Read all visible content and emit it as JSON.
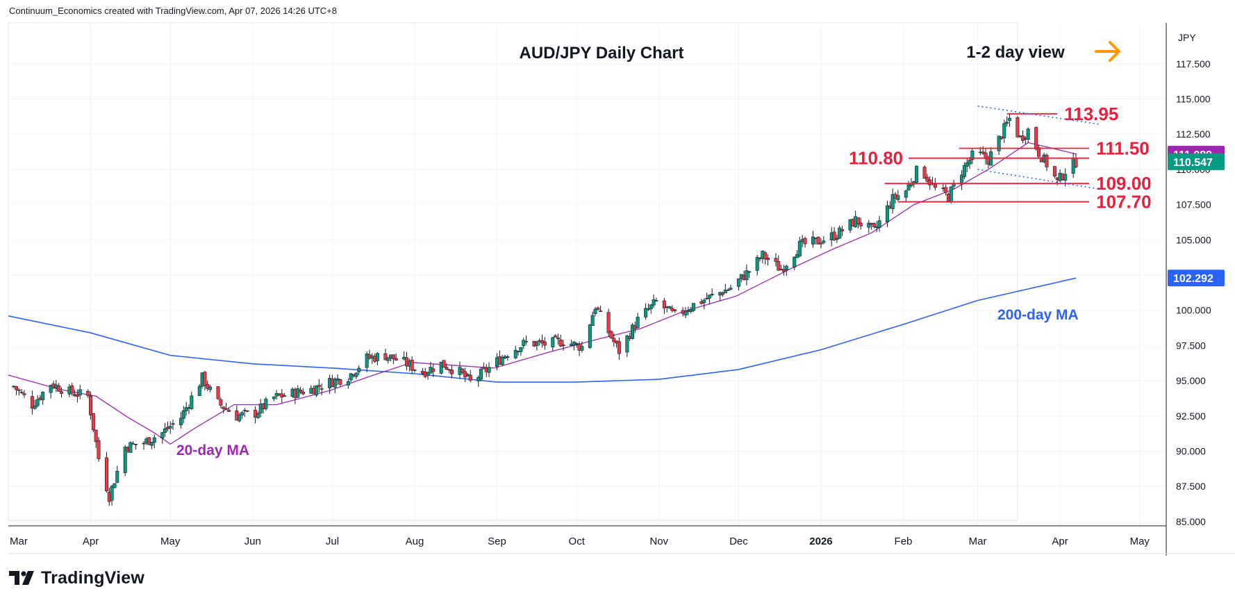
{
  "header": {
    "text": "Continuum_Economics created with TradingView.com, Apr 07, 2026 14:26 UTC+8"
  },
  "brand": {
    "name": "TradingView"
  },
  "chart_data": {
    "type": "candlestick",
    "title": "AUD/JPY Daily Chart",
    "view_label": "1-2 day view",
    "view_arrow": "arrow-right-icon",
    "currency_label": "JPY",
    "ylim": [
      84.7,
      120.4
    ],
    "y_ticks": [
      "117.500",
      "115.000",
      "112.500",
      "110.000",
      "107.500",
      "105.000",
      "102.500",
      "100.000",
      "97.500",
      "95.000",
      "92.500",
      "90.000",
      "87.500",
      "85.000"
    ],
    "x_ticks": [
      "Mar",
      "Apr",
      "May",
      "Jun",
      "Jul",
      "Aug",
      "Sep",
      "Oct",
      "Nov",
      "Dec",
      "2026",
      "Feb",
      "Mar",
      "Apr",
      "May"
    ],
    "x_tick_positions": [
      "2025-03-01",
      "2025-04-01",
      "2025-05-01",
      "2025-06-01",
      "2025-07-01",
      "2025-08-01",
      "2025-09-01",
      "2025-10-01",
      "2025-11-01",
      "2025-12-01",
      "2026-01-01",
      "2026-02-01",
      "2026-03-01",
      "2026-04-01",
      "2026-05-01"
    ],
    "x_range": [
      "2025-03-01",
      "2026-05-11"
    ],
    "price_path": [
      {
        "date": "2025-03-03",
        "close": 94.6
      },
      {
        "date": "2025-03-10",
        "close": 93.3
      },
      {
        "date": "2025-03-17",
        "close": 94.8
      },
      {
        "date": "2025-03-24",
        "close": 94.2
      },
      {
        "date": "2025-03-31",
        "close": 93.9
      },
      {
        "date": "2025-04-04",
        "close": 89.5
      },
      {
        "date": "2025-04-08",
        "close": 86.8
      },
      {
        "date": "2025-04-14",
        "close": 90.3
      },
      {
        "date": "2025-04-21",
        "close": 90.6
      },
      {
        "date": "2025-04-28",
        "close": 91.3
      },
      {
        "date": "2025-05-05",
        "close": 92.4
      },
      {
        "date": "2025-05-13",
        "close": 95.2
      },
      {
        "date": "2025-05-19",
        "close": 93.4
      },
      {
        "date": "2025-05-26",
        "close": 92.5
      },
      {
        "date": "2025-06-02",
        "close": 92.7
      },
      {
        "date": "2025-06-09",
        "close": 93.8
      },
      {
        "date": "2025-06-16",
        "close": 94.1
      },
      {
        "date": "2025-06-23",
        "close": 94.4
      },
      {
        "date": "2025-06-30",
        "close": 94.9
      },
      {
        "date": "2025-07-07",
        "close": 95.3
      },
      {
        "date": "2025-07-14",
        "close": 96.6
      },
      {
        "date": "2025-07-21",
        "close": 96.8
      },
      {
        "date": "2025-07-28",
        "close": 96.3
      },
      {
        "date": "2025-08-04",
        "close": 95.6
      },
      {
        "date": "2025-08-11",
        "close": 96.2
      },
      {
        "date": "2025-08-18",
        "close": 95.6
      },
      {
        "date": "2025-08-22",
        "close": 94.9
      },
      {
        "date": "2025-08-29",
        "close": 95.9
      },
      {
        "date": "2025-09-05",
        "close": 97.0
      },
      {
        "date": "2025-09-12",
        "close": 97.7
      },
      {
        "date": "2025-09-19",
        "close": 97.6
      },
      {
        "date": "2025-09-26",
        "close": 97.8
      },
      {
        "date": "2025-10-03",
        "close": 97.4
      },
      {
        "date": "2025-10-08",
        "close": 100.3
      },
      {
        "date": "2025-10-14",
        "close": 98.1
      },
      {
        "date": "2025-10-17",
        "close": 97.1
      },
      {
        "date": "2025-10-24",
        "close": 99.3
      },
      {
        "date": "2025-10-31",
        "close": 100.6
      },
      {
        "date": "2025-11-07",
        "close": 99.6
      },
      {
        "date": "2025-11-14",
        "close": 100.4
      },
      {
        "date": "2025-11-21",
        "close": 101.0
      },
      {
        "date": "2025-11-28",
        "close": 101.6
      },
      {
        "date": "2025-12-05",
        "close": 102.8
      },
      {
        "date": "2025-12-10",
        "close": 103.9
      },
      {
        "date": "2025-12-17",
        "close": 102.9
      },
      {
        "date": "2025-12-24",
        "close": 104.6
      },
      {
        "date": "2025-12-31",
        "close": 104.9
      },
      {
        "date": "2026-01-07",
        "close": 105.4
      },
      {
        "date": "2026-01-14",
        "close": 106.4
      },
      {
        "date": "2026-01-21",
        "close": 105.6
      },
      {
        "date": "2026-01-28",
        "close": 107.9
      },
      {
        "date": "2026-02-02",
        "close": 108.5
      },
      {
        "date": "2026-02-07",
        "close": 110.2
      },
      {
        "date": "2026-02-13",
        "close": 108.6
      },
      {
        "date": "2026-02-18",
        "close": 108.1
      },
      {
        "date": "2026-02-23",
        "close": 109.9
      },
      {
        "date": "2026-02-28",
        "close": 111.2
      },
      {
        "date": "2026-03-05",
        "close": 110.7
      },
      {
        "date": "2026-03-10",
        "close": 112.5
      },
      {
        "date": "2026-03-13",
        "close": 113.6
      },
      {
        "date": "2026-03-17",
        "close": 112.2
      },
      {
        "date": "2026-03-20",
        "close": 112.8
      },
      {
        "date": "2026-03-24",
        "close": 111.2
      },
      {
        "date": "2026-03-28",
        "close": 110.1
      },
      {
        "date": "2026-03-31",
        "close": 109.1
      },
      {
        "date": "2026-04-03",
        "close": 109.9
      },
      {
        "date": "2026-04-07",
        "close": 110.55
      }
    ],
    "ma20": {
      "label": "20-day MA",
      "color": "#9c27b0",
      "last_value": "111.089",
      "points": [
        {
          "date": "2025-03-01",
          "value": 95.4
        },
        {
          "date": "2025-03-20",
          "value": 94.4
        },
        {
          "date": "2025-04-03",
          "value": 93.9
        },
        {
          "date": "2025-04-15",
          "value": 92.4
        },
        {
          "date": "2025-04-25",
          "value": 91.3
        },
        {
          "date": "2025-05-01",
          "value": 90.5
        },
        {
          "date": "2025-05-10",
          "value": 91.6
        },
        {
          "date": "2025-05-25",
          "value": 93.3
        },
        {
          "date": "2025-06-10",
          "value": 93.3
        },
        {
          "date": "2025-06-30",
          "value": 94.3
        },
        {
          "date": "2025-07-15",
          "value": 95.3
        },
        {
          "date": "2025-07-31",
          "value": 96.3
        },
        {
          "date": "2025-08-15",
          "value": 96.1
        },
        {
          "date": "2025-08-31",
          "value": 95.9
        },
        {
          "date": "2025-09-20",
          "value": 97.0
        },
        {
          "date": "2025-10-08",
          "value": 97.9
        },
        {
          "date": "2025-10-25",
          "value": 98.7
        },
        {
          "date": "2025-11-10",
          "value": 99.9
        },
        {
          "date": "2025-11-30",
          "value": 101.0
        },
        {
          "date": "2025-12-20",
          "value": 102.9
        },
        {
          "date": "2026-01-05",
          "value": 104.3
        },
        {
          "date": "2026-01-20",
          "value": 105.5
        },
        {
          "date": "2026-02-05",
          "value": 107.5
        },
        {
          "date": "2026-02-20",
          "value": 108.6
        },
        {
          "date": "2026-03-05",
          "value": 110.0
        },
        {
          "date": "2026-03-20",
          "value": 111.9
        },
        {
          "date": "2026-03-27",
          "value": 111.6
        },
        {
          "date": "2026-04-07",
          "value": 111.09
        }
      ]
    },
    "ma200": {
      "label": "200-day MA",
      "color": "#2962ff",
      "last_value": "102.292",
      "points": [
        {
          "date": "2025-03-01",
          "value": 99.6
        },
        {
          "date": "2025-04-01",
          "value": 98.4
        },
        {
          "date": "2025-05-01",
          "value": 96.8
        },
        {
          "date": "2025-06-01",
          "value": 96.2
        },
        {
          "date": "2025-07-01",
          "value": 95.9
        },
        {
          "date": "2025-08-01",
          "value": 95.5
        },
        {
          "date": "2025-09-01",
          "value": 94.9
        },
        {
          "date": "2025-10-01",
          "value": 94.9
        },
        {
          "date": "2025-11-01",
          "value": 95.1
        },
        {
          "date": "2025-12-01",
          "value": 95.8
        },
        {
          "date": "2026-01-01",
          "value": 97.2
        },
        {
          "date": "2026-02-01",
          "value": 99.0
        },
        {
          "date": "2026-03-01",
          "value": 100.7
        },
        {
          "date": "2026-04-07",
          "value": 102.29
        }
      ]
    },
    "last_price": {
      "value": "110.547",
      "color": "#089981"
    },
    "levels": [
      {
        "value": 113.95,
        "label": "113.95",
        "start": "2026-03-12",
        "end": "2026-03-31"
      },
      {
        "value": 111.5,
        "label": "111.50",
        "start": "2026-02-22",
        "end": "2026-04-12"
      },
      {
        "value": 110.8,
        "label": "110.80",
        "start": "2026-02-03",
        "end": "2026-04-12"
      },
      {
        "value": 109.0,
        "label": "109.00",
        "start": "2026-01-25",
        "end": "2026-04-12"
      },
      {
        "value": 107.7,
        "label": "107.70",
        "start": "2026-01-30",
        "end": "2026-04-12"
      }
    ],
    "trend_lines": [
      {
        "start": {
          "date": "2026-03-01",
          "value": 114.5
        },
        "end": {
          "date": "2026-04-16",
          "value": 113.2
        }
      },
      {
        "start": {
          "date": "2026-03-01",
          "value": 110.0
        },
        "end": {
          "date": "2026-04-16",
          "value": 108.6
        }
      }
    ],
    "level_color": "#e91e3a",
    "up_color": "#089981",
    "down_color": "#f23645"
  }
}
